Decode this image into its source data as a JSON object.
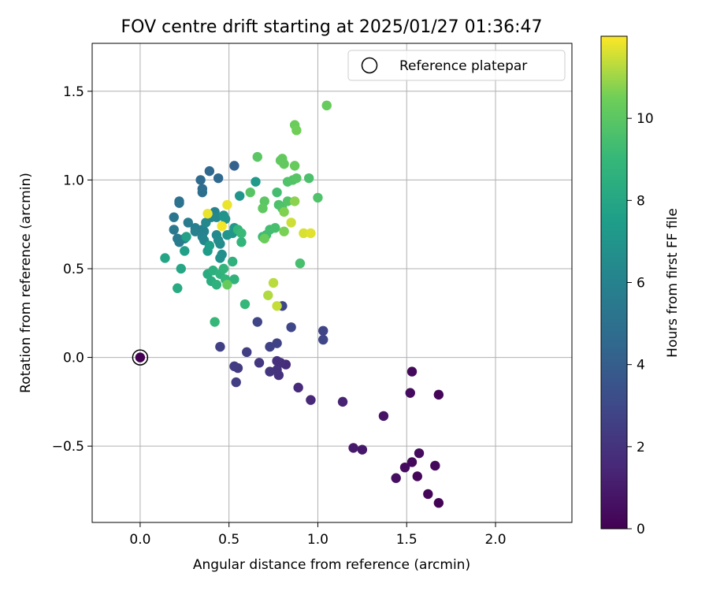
{
  "chart_data": {
    "type": "scatter",
    "title": "FOV centre drift starting at 2025/01/27 01:36:47",
    "xlabel": "Angular distance from reference (arcmin)",
    "ylabel": "Rotation from reference (arcmin)",
    "xlim": [
      -0.27,
      2.43
    ],
    "ylim": [
      -0.93,
      1.77
    ],
    "xticks": [
      "0.0",
      "0.5",
      "1.0",
      "1.5",
      "2.0"
    ],
    "xtick_values": [
      0,
      0.5,
      1,
      1.5,
      2
    ],
    "yticks": [
      "−0.5",
      "0.0",
      "0.5",
      "1.0",
      "1.5"
    ],
    "ytick_values": [
      -0.5,
      0,
      0.5,
      1,
      1.5
    ],
    "grid": true,
    "legend": {
      "position": "top-right",
      "entries": [
        "Reference platepar"
      ]
    },
    "reference_point": {
      "x": 0.0,
      "y": 0.0
    },
    "colorbar": {
      "label": "Hours from first FF file",
      "colormap": "viridis",
      "range": [
        0,
        12
      ],
      "ticks": [
        "0",
        "2",
        "4",
        "6",
        "8",
        "10"
      ],
      "tick_values": [
        0,
        2,
        4,
        6,
        8,
        10
      ]
    },
    "points": [
      [
        1.68,
        -0.82,
        0.1
      ],
      [
        1.62,
        -0.77,
        0.2
      ],
      [
        1.56,
        -0.67,
        0.2
      ],
      [
        1.53,
        -0.59,
        0.3
      ],
      [
        1.49,
        -0.62,
        0.4
      ],
      [
        1.44,
        -0.68,
        0.5
      ],
      [
        1.57,
        -0.54,
        0.4
      ],
      [
        1.66,
        -0.61,
        0.3
      ],
      [
        1.68,
        -0.21,
        0.2
      ],
      [
        1.53,
        -0.08,
        0.3
      ],
      [
        1.52,
        -0.2,
        0.4
      ],
      [
        1.37,
        -0.33,
        0.7
      ],
      [
        1.25,
        -0.52,
        0.9
      ],
      [
        1.2,
        -0.51,
        1.0
      ],
      [
        1.14,
        -0.25,
        1.3
      ],
      [
        0.96,
        -0.24,
        1.5
      ],
      [
        0.89,
        -0.17,
        1.6
      ],
      [
        0.82,
        -0.04,
        1.7
      ],
      [
        0.79,
        -0.03,
        1.8
      ],
      [
        0.77,
        -0.02,
        1.9
      ],
      [
        0.78,
        -0.1,
        1.9
      ],
      [
        0.77,
        -0.07,
        2.0
      ],
      [
        0.73,
        -0.08,
        2.1
      ],
      [
        0.67,
        -0.03,
        2.2
      ],
      [
        0.55,
        -0.06,
        2.3
      ],
      [
        0.53,
        -0.05,
        2.4
      ],
      [
        0.54,
        -0.14,
        2.5
      ],
      [
        0.6,
        0.03,
        2.5
      ],
      [
        0.45,
        0.06,
        2.6
      ],
      [
        0.73,
        0.06,
        2.7
      ],
      [
        0.77,
        0.08,
        2.7
      ],
      [
        0.66,
        0.2,
        2.8
      ],
      [
        0.85,
        0.17,
        2.9
      ],
      [
        0.8,
        0.29,
        2.9
      ],
      [
        1.03,
        0.15,
        2.8
      ],
      [
        1.03,
        0.1,
        2.9
      ],
      [
        0.53,
        1.08,
        4.2
      ],
      [
        0.39,
        1.05,
        4.5
      ],
      [
        0.44,
        1.01,
        4.6
      ],
      [
        0.34,
        1.0,
        4.7
      ],
      [
        0.35,
        0.95,
        4.8
      ],
      [
        0.35,
        0.93,
        4.9
      ],
      [
        0.22,
        0.88,
        5.0
      ],
      [
        0.22,
        0.87,
        5.1
      ],
      [
        0.19,
        0.79,
        5.3
      ],
      [
        0.19,
        0.72,
        5.4
      ],
      [
        0.21,
        0.67,
        5.5
      ],
      [
        0.22,
        0.65,
        5.6
      ],
      [
        0.25,
        0.67,
        5.7
      ],
      [
        0.27,
        0.76,
        5.6
      ],
      [
        0.31,
        0.73,
        5.8
      ],
      [
        0.31,
        0.71,
        5.9
      ],
      [
        0.35,
        0.72,
        5.8
      ],
      [
        0.36,
        0.71,
        6.0
      ],
      [
        0.35,
        0.68,
        6.1
      ],
      [
        0.36,
        0.66,
        6.2
      ],
      [
        0.37,
        0.76,
        6.3
      ],
      [
        0.4,
        0.79,
        6.1
      ],
      [
        0.41,
        0.81,
        6.2
      ],
      [
        0.42,
        0.82,
        6.0
      ],
      [
        0.43,
        0.79,
        6.4
      ],
      [
        0.43,
        0.69,
        6.4
      ],
      [
        0.44,
        0.66,
        6.5
      ],
      [
        0.45,
        0.64,
        6.6
      ],
      [
        0.46,
        0.58,
        6.7
      ],
      [
        0.45,
        0.56,
        6.8
      ],
      [
        0.47,
        0.8,
        6.9
      ],
      [
        0.48,
        0.78,
        7.0
      ],
      [
        0.49,
        0.69,
        7.0
      ],
      [
        0.52,
        0.7,
        7.1
      ],
      [
        0.53,
        0.73,
        7.2
      ],
      [
        0.56,
        0.91,
        7.0
      ],
      [
        0.65,
        0.99,
        7.3
      ],
      [
        0.38,
        0.6,
        7.4
      ],
      [
        0.39,
        0.63,
        7.5
      ],
      [
        0.25,
        0.6,
        7.6
      ],
      [
        0.26,
        0.68,
        7.7
      ],
      [
        0.14,
        0.56,
        7.9
      ],
      [
        0.23,
        0.5,
        8.0
      ],
      [
        0.21,
        0.39,
        8.2
      ],
      [
        0.38,
        0.47,
        8.3
      ],
      [
        0.4,
        0.43,
        8.4
      ],
      [
        0.41,
        0.49,
        8.5
      ],
      [
        0.43,
        0.41,
        8.6
      ],
      [
        0.45,
        0.47,
        8.7
      ],
      [
        0.47,
        0.5,
        8.8
      ],
      [
        0.48,
        0.44,
        8.9
      ],
      [
        0.52,
        0.54,
        8.6
      ],
      [
        0.53,
        0.44,
        8.7
      ],
      [
        0.57,
        0.65,
        8.8
      ],
      [
        0.55,
        0.72,
        8.9
      ],
      [
        0.59,
        0.3,
        9.0
      ],
      [
        0.42,
        0.2,
        9.0
      ],
      [
        0.57,
        0.7,
        9.1
      ],
      [
        0.69,
        0.68,
        9.2
      ],
      [
        0.71,
        0.69,
        9.3
      ],
      [
        0.73,
        0.72,
        9.4
      ],
      [
        0.76,
        0.73,
        9.5
      ],
      [
        0.77,
        0.93,
        9.4
      ],
      [
        0.78,
        0.86,
        9.6
      ],
      [
        0.8,
        0.84,
        9.7
      ],
      [
        0.83,
        0.88,
        9.8
      ],
      [
        0.83,
        0.99,
        9.7
      ],
      [
        0.86,
        1.0,
        9.8
      ],
      [
        0.88,
        1.01,
        9.9
      ],
      [
        0.95,
        1.01,
        9.6
      ],
      [
        1.0,
        0.9,
        9.7
      ],
      [
        0.9,
        0.53,
        9.5
      ],
      [
        0.62,
        0.93,
        9.9
      ],
      [
        0.66,
        1.13,
        10.0
      ],
      [
        0.7,
        0.88,
        10.0
      ],
      [
        0.69,
        0.84,
        10.1
      ],
      [
        0.79,
        1.11,
        10.1
      ],
      [
        0.8,
        1.12,
        10.2
      ],
      [
        0.81,
        1.09,
        10.2
      ],
      [
        0.87,
        1.08,
        10.3
      ],
      [
        0.87,
        1.31,
        10.4
      ],
      [
        0.88,
        1.28,
        10.5
      ],
      [
        1.05,
        1.42,
        10.3
      ],
      [
        0.49,
        0.41,
        10.3
      ],
      [
        0.7,
        0.67,
        10.4
      ],
      [
        0.81,
        0.71,
        10.6
      ],
      [
        0.81,
        0.82,
        10.7
      ],
      [
        0.87,
        0.88,
        10.8
      ],
      [
        0.72,
        0.35,
        11.2
      ],
      [
        0.75,
        0.42,
        11.3
      ],
      [
        0.77,
        0.29,
        11.4
      ],
      [
        0.85,
        0.76,
        11.5
      ],
      [
        0.92,
        0.7,
        11.6
      ],
      [
        0.96,
        0.7,
        11.7
      ],
      [
        0.38,
        0.81,
        11.8
      ],
      [
        0.46,
        0.74,
        11.9
      ],
      [
        0.49,
        0.86,
        11.8
      ]
    ]
  }
}
